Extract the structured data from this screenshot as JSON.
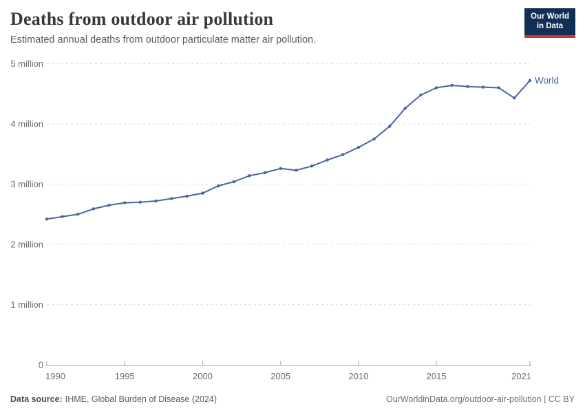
{
  "header": {
    "title": "Deaths from outdoor air pollution",
    "subtitle": "Estimated annual deaths from outdoor particulate matter air pollution.",
    "logo": {
      "line1": "Our World",
      "line2": "in Data"
    }
  },
  "chart_data": {
    "type": "line",
    "title": "Deaths from outdoor air pollution",
    "x": [
      1990,
      1991,
      1992,
      1993,
      1994,
      1995,
      1996,
      1997,
      1998,
      1999,
      2000,
      2001,
      2002,
      2003,
      2004,
      2005,
      2006,
      2007,
      2008,
      2009,
      2010,
      2011,
      2012,
      2013,
      2014,
      2015,
      2016,
      2017,
      2018,
      2019,
      2020,
      2021
    ],
    "series": [
      {
        "name": "World",
        "unit": "million deaths",
        "values": [
          2.42,
          2.46,
          2.5,
          2.59,
          2.65,
          2.69,
          2.7,
          2.72,
          2.76,
          2.8,
          2.85,
          2.97,
          3.04,
          3.14,
          3.19,
          3.26,
          3.23,
          3.3,
          3.4,
          3.49,
          3.61,
          3.75,
          3.96,
          4.26,
          4.48,
          4.6,
          4.64,
          4.62,
          4.61,
          4.6,
          4.43,
          4.72
        ]
      }
    ],
    "x_range": [
      1990,
      2021
    ],
    "ylim_millions": [
      0,
      5
    ],
    "y_ticks": [
      {
        "value": 0,
        "label": "0"
      },
      {
        "value": 1,
        "label": "1 million"
      },
      {
        "value": 2,
        "label": "2 million"
      },
      {
        "value": 3,
        "label": "3 million"
      },
      {
        "value": 4,
        "label": "4 million"
      },
      {
        "value": 5,
        "label": "5 million"
      }
    ],
    "x_ticks": [
      1990,
      1995,
      2000,
      2005,
      2010,
      2015,
      2021
    ],
    "grid": "horizontal-dashed",
    "legend_position": "end-of-line"
  },
  "colors": {
    "line": "#4864a0",
    "series_label": "#4864a0",
    "grid": "#dcdcdc",
    "axis": "#a3a3a3",
    "tick_text": "#6b6b6b",
    "logo_bg": "#132e54",
    "logo_red": "#d0342c"
  },
  "footer": {
    "source_label": "Data source:",
    "source_value": "IHME, Global Burden of Disease (2024)",
    "credit": "OurWorldinData.org/outdoor-air-pollution | CC BY"
  }
}
